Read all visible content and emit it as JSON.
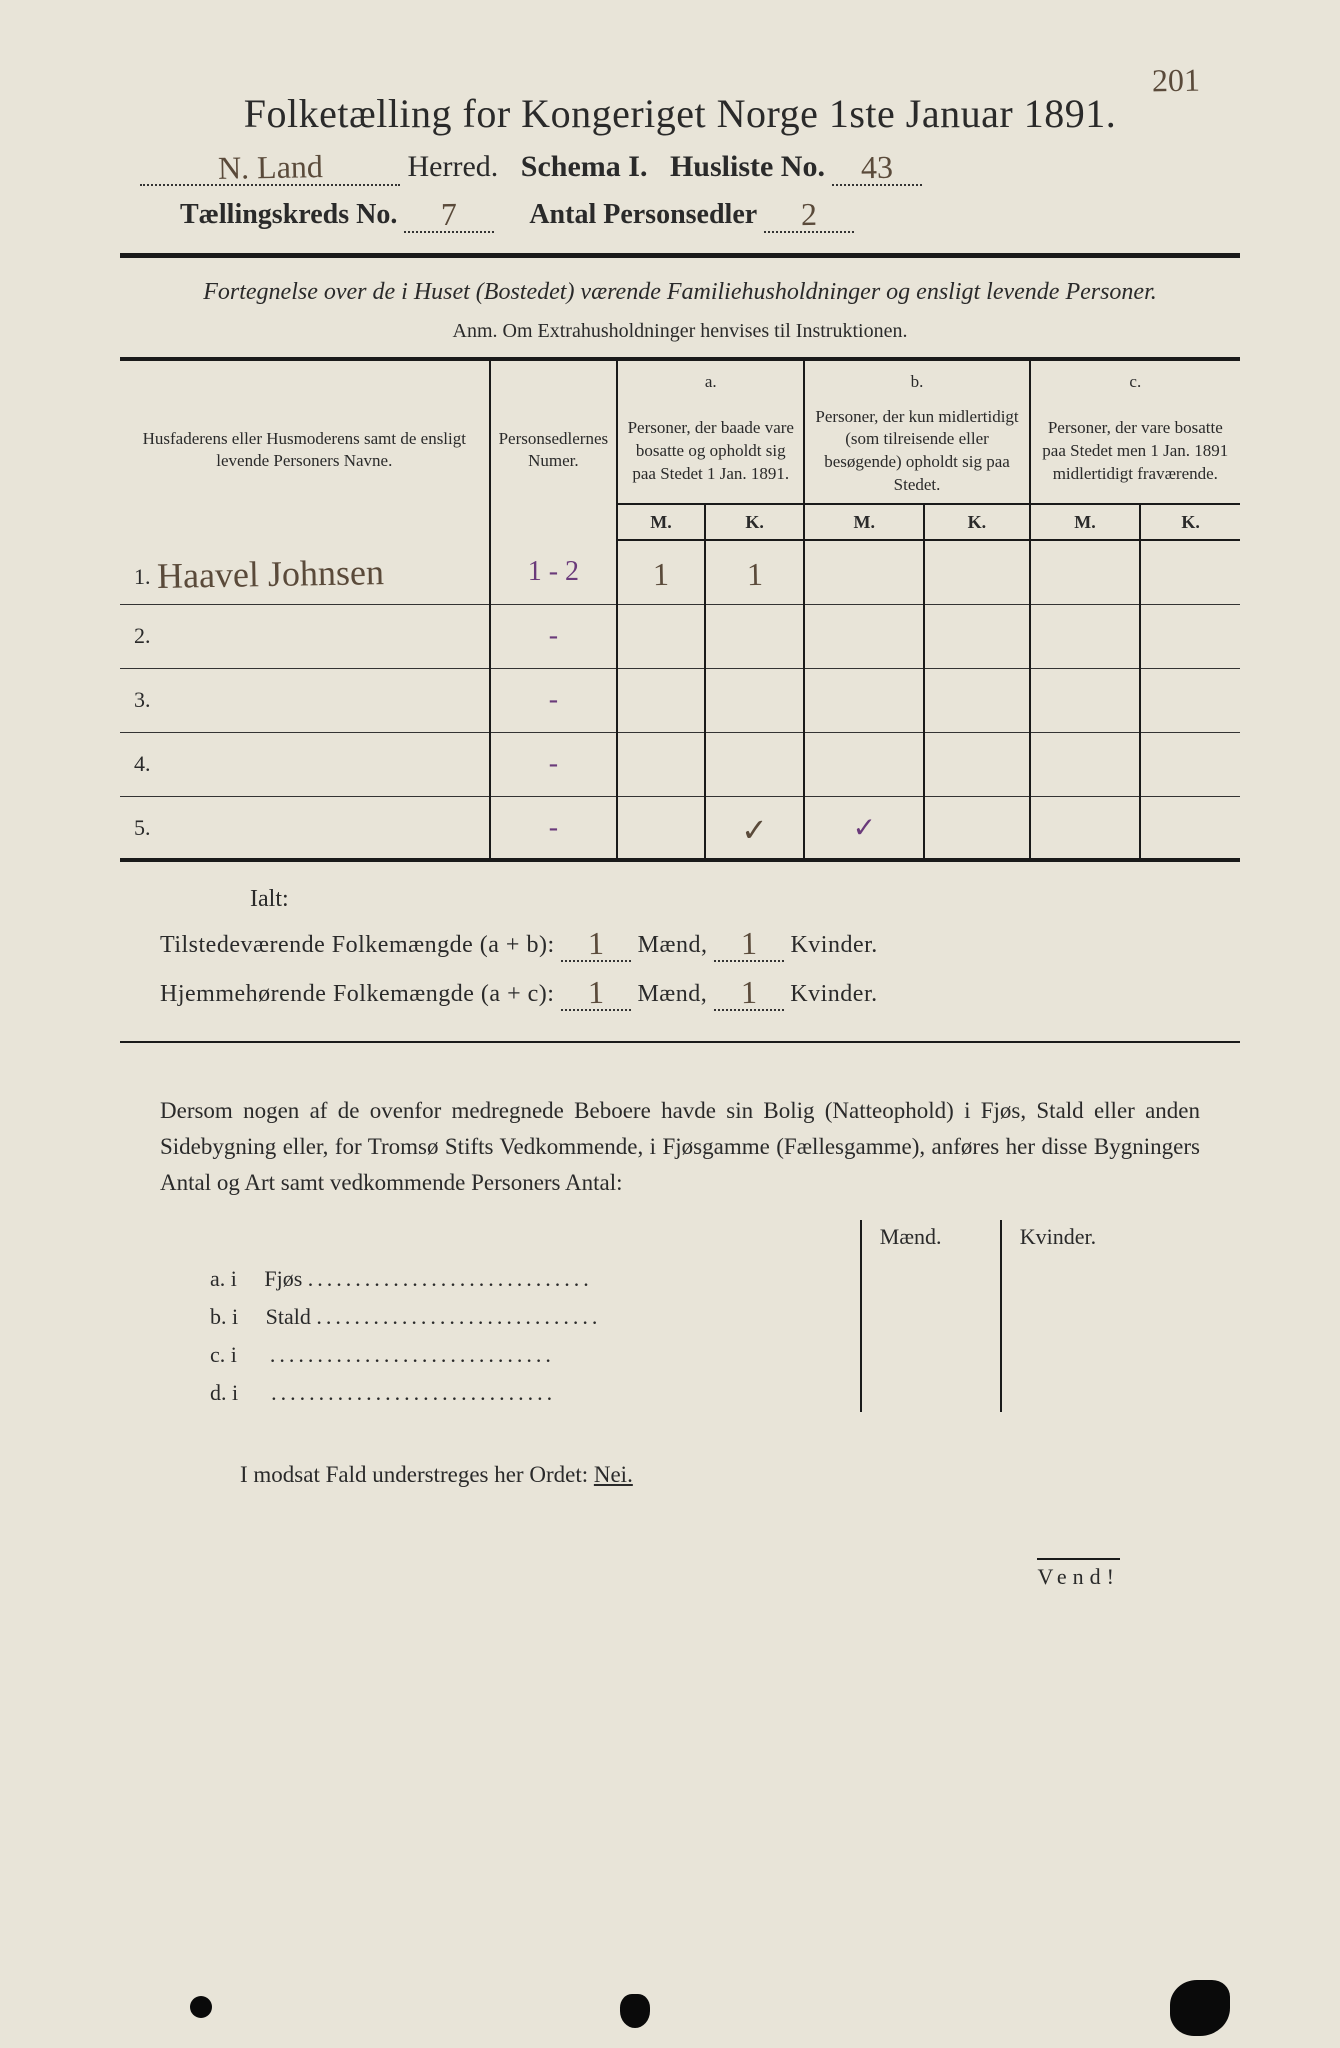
{
  "pageCorner": "201",
  "title": "Folketælling for Kongeriget Norge 1ste Januar 1891.",
  "header": {
    "herred_value": "N. Land",
    "herred_label": "Herred.",
    "schema_label": "Schema I.",
    "husliste_label": "Husliste No.",
    "husliste_value": "43",
    "kreds_label": "Tællingskreds No.",
    "kreds_value": "7",
    "personsedler_label": "Antal Personsedler",
    "personsedler_value": "2"
  },
  "subtitle": "Fortegnelse over de i Huset (Bostedet) værende Familiehusholdninger og ensligt levende Personer.",
  "anm": "Anm. Om Extrahusholdninger henvises til Instruktionen.",
  "table": {
    "col1": "Husfaderens eller Husmoderens samt de ensligt levende Personers Navne.",
    "col2": "Personsedlernes Numer.",
    "col_a_label": "a.",
    "col_a": "Personer, der baade vare bosatte og opholdt sig paa Stedet 1 Jan. 1891.",
    "col_b_label": "b.",
    "col_b": "Personer, der kun midlertidigt (som tilreisende eller besøgende) opholdt sig paa Stedet.",
    "col_c_label": "c.",
    "col_c": "Personer, der vare bosatte paa Stedet men 1 Jan. 1891 midlertidigt fraværende.",
    "m": "M.",
    "k": "K.",
    "rows": [
      {
        "n": "1.",
        "name": "Haavel Johnsen",
        "num": "1 - 2",
        "aM": "1",
        "aK": "1",
        "bM": "",
        "bK": "",
        "cM": "",
        "cK": ""
      },
      {
        "n": "2.",
        "name": "",
        "num": "-",
        "aM": "",
        "aK": "",
        "bM": "",
        "bK": "",
        "cM": "",
        "cK": ""
      },
      {
        "n": "3.",
        "name": "",
        "num": "-",
        "aM": "",
        "aK": "",
        "bM": "",
        "bK": "",
        "cM": "",
        "cK": ""
      },
      {
        "n": "4.",
        "name": "",
        "num": "-",
        "aM": "",
        "aK": "",
        "bM": "",
        "bK": "",
        "cM": "",
        "cK": ""
      },
      {
        "n": "5.",
        "name": "",
        "num": "-",
        "aM": "",
        "aK": "✓",
        "bM": "✓",
        "bK": "",
        "cM": "",
        "cK": ""
      }
    ]
  },
  "ialt": "Ialt:",
  "totals": {
    "line1_label": "Tilstedeværende Folkemængde (a + b):",
    "line2_label": "Hjemmehørende Folkemængde (a + c):",
    "maend": "Mænd,",
    "kvinder": "Kvinder.",
    "v1m": "1",
    "v1k": "1",
    "v2m": "1",
    "v2k": "1"
  },
  "paragraph": "Dersom nogen af de ovenfor medregnede Beboere havde sin Bolig (Natteophold) i Fjøs, Stald eller anden Sidebygning eller, for Tromsø Stifts Vedkommende, i Fjøsgamme (Fællesgamme), anføres her disse Bygningers Antal og Art samt vedkommende Personers Antal:",
  "buildings": {
    "maend": "Mænd.",
    "kvinder": "Kvinder.",
    "rows": [
      {
        "label": "a.  i",
        "type": "Fjøs"
      },
      {
        "label": "b.  i",
        "type": "Stald"
      },
      {
        "label": "c.  i",
        "type": ""
      },
      {
        "label": "d.  i",
        "type": ""
      }
    ]
  },
  "neiLine": "I modsat Fald understreges her Ordet: ",
  "nei": "Nei.",
  "vend": "Vend!",
  "colors": {
    "paper": "#e8e4d8",
    "ink": "#1a1a1a",
    "handBrown": "#5a4a3a",
    "handPurple": "#6a3a7a"
  }
}
